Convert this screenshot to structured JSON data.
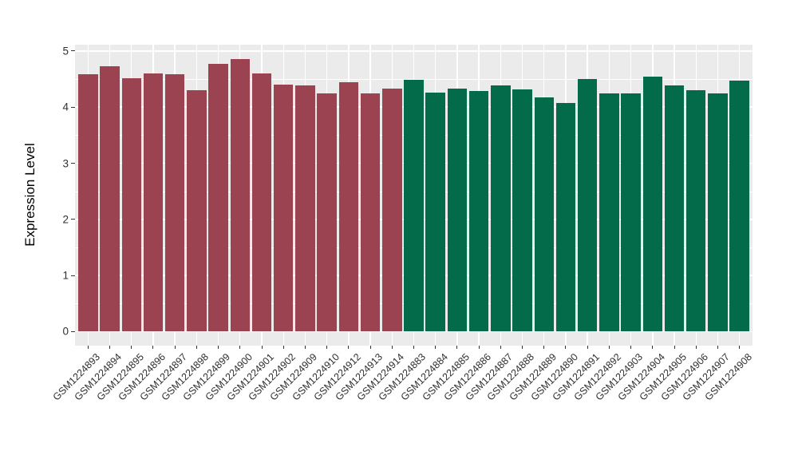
{
  "chart_data": {
    "type": "bar",
    "title": "",
    "xlabel": "",
    "ylabel": "Expression Level",
    "ylim": [
      0,
      5
    ],
    "yticks": [
      0,
      1,
      2,
      3,
      4,
      5
    ],
    "grid": true,
    "legend_position": "none",
    "panel_background": "#EBEBEB",
    "grid_color": "#FFFFFF",
    "tick_color": "#333333",
    "groups": {
      "maroon": "#9B4350",
      "green": "#036A4A"
    },
    "bars": [
      {
        "label": "GSM1224893",
        "value": 4.59,
        "group": "maroon"
      },
      {
        "label": "GSM1224894",
        "value": 4.73,
        "group": "maroon"
      },
      {
        "label": "GSM1224895",
        "value": 4.52,
        "group": "maroon"
      },
      {
        "label": "GSM1224896",
        "value": 4.6,
        "group": "maroon"
      },
      {
        "label": "GSM1224897",
        "value": 4.59,
        "group": "maroon"
      },
      {
        "label": "GSM1224898",
        "value": 4.3,
        "group": "maroon"
      },
      {
        "label": "GSM1224899",
        "value": 4.77,
        "group": "maroon"
      },
      {
        "label": "GSM1224900",
        "value": 4.86,
        "group": "maroon"
      },
      {
        "label": "GSM1224901",
        "value": 4.6,
        "group": "maroon"
      },
      {
        "label": "GSM1224902",
        "value": 4.4,
        "group": "maroon"
      },
      {
        "label": "GSM1224909",
        "value": 4.38,
        "group": "maroon"
      },
      {
        "label": "GSM1224910",
        "value": 4.24,
        "group": "maroon"
      },
      {
        "label": "GSM1224912",
        "value": 4.45,
        "group": "maroon"
      },
      {
        "label": "GSM1224913",
        "value": 4.25,
        "group": "maroon"
      },
      {
        "label": "GSM1224914",
        "value": 4.33,
        "group": "maroon"
      },
      {
        "label": "GSM1224883",
        "value": 4.48,
        "group": "green"
      },
      {
        "label": "GSM1224884",
        "value": 4.26,
        "group": "green"
      },
      {
        "label": "GSM1224885",
        "value": 4.33,
        "group": "green"
      },
      {
        "label": "GSM1224886",
        "value": 4.29,
        "group": "green"
      },
      {
        "label": "GSM1224887",
        "value": 4.38,
        "group": "green"
      },
      {
        "label": "GSM1224888",
        "value": 4.31,
        "group": "green"
      },
      {
        "label": "GSM1224889",
        "value": 4.18,
        "group": "green"
      },
      {
        "label": "GSM1224890",
        "value": 4.08,
        "group": "green"
      },
      {
        "label": "GSM1224891",
        "value": 4.5,
        "group": "green"
      },
      {
        "label": "GSM1224892",
        "value": 4.25,
        "group": "green"
      },
      {
        "label": "GSM1224903",
        "value": 4.25,
        "group": "green"
      },
      {
        "label": "GSM1224904",
        "value": 4.54,
        "group": "green"
      },
      {
        "label": "GSM1224905",
        "value": 4.38,
        "group": "green"
      },
      {
        "label": "GSM1224906",
        "value": 4.3,
        "group": "green"
      },
      {
        "label": "GSM1224907",
        "value": 4.24,
        "group": "green"
      },
      {
        "label": "GSM1224908",
        "value": 4.47,
        "group": "green"
      }
    ]
  }
}
